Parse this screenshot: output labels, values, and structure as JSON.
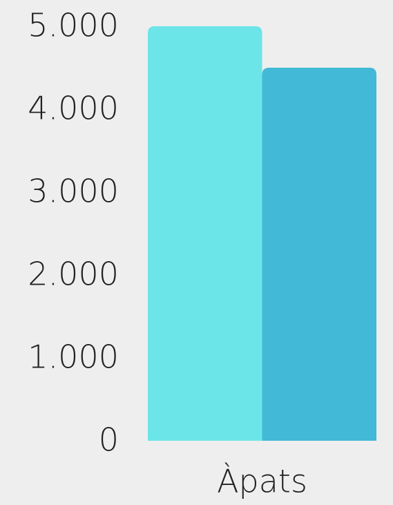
{
  "chart_data": {
    "type": "bar",
    "categories": [
      "Àpats"
    ],
    "series": [
      {
        "color": "#6be5e8",
        "values": [
          5000
        ]
      },
      {
        "color": "#42b9d6",
        "values": [
          4500
        ]
      }
    ],
    "ylim": [
      0,
      5000
    ],
    "yticks": [
      0,
      {
        "value": 1000,
        "label": "1.000"
      },
      {
        "value": 2000,
        "label": "2.000"
      },
      {
        "value": 3000,
        "label": "3.000"
      },
      {
        "value": 4000,
        "label": "4.000"
      },
      {
        "value": 5000,
        "label": "5.000"
      }
    ],
    "grid": false
  }
}
